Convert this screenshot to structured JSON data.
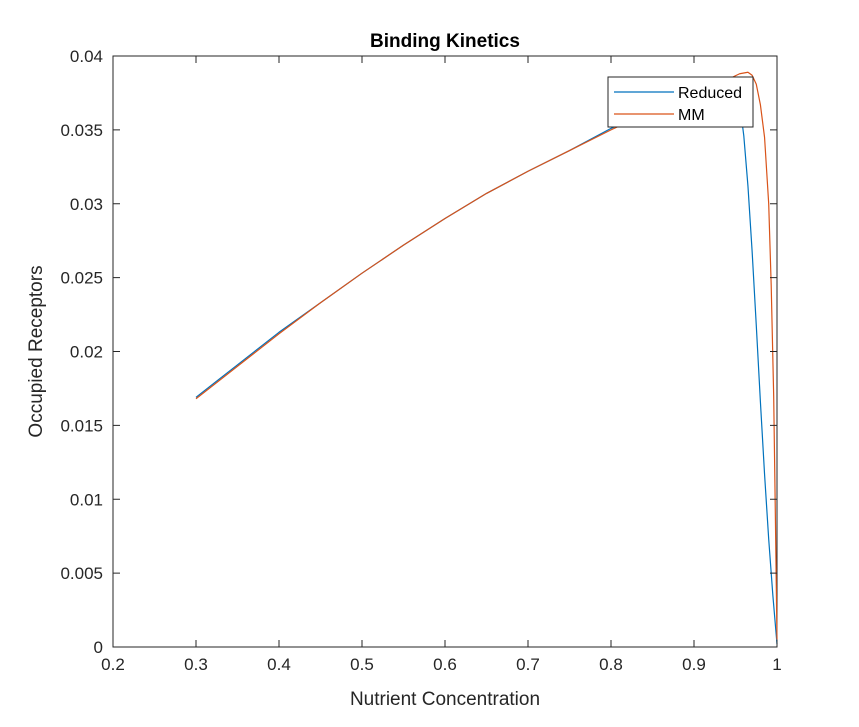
{
  "chart_data": {
    "type": "line",
    "title": "Binding Kinetics",
    "xlabel": "Nutrient Concentration",
    "ylabel": "Occupied Receptors",
    "xlim": [
      0.2,
      1.0
    ],
    "ylim": [
      0,
      0.04
    ],
    "xticks": [
      "0.2",
      "0.3",
      "0.4",
      "0.5",
      "0.6",
      "0.7",
      "0.8",
      "0.9",
      "1"
    ],
    "yticks": [
      "0",
      "0.005",
      "0.01",
      "0.015",
      "0.02",
      "0.025",
      "0.03",
      "0.035",
      "0.04"
    ],
    "grid": false,
    "legend_position": "top-right",
    "series": [
      {
        "name": "Reduced",
        "color": "#0072BD",
        "x": [
          0.3,
          0.35,
          0.4,
          0.45,
          0.5,
          0.55,
          0.6,
          0.65,
          0.7,
          0.75,
          0.8,
          0.85,
          0.9,
          0.925,
          0.94,
          0.95,
          0.955,
          0.96,
          0.965,
          0.97,
          0.975,
          0.98,
          0.985,
          0.99,
          0.995,
          1.0
        ],
        "y": [
          0.0169,
          0.0191,
          0.0213,
          0.0233,
          0.0253,
          0.0272,
          0.029,
          0.0307,
          0.0322,
          0.0336,
          0.0351,
          0.0364,
          0.0376,
          0.0382,
          0.0384,
          0.0378,
          0.0368,
          0.0346,
          0.0312,
          0.0268,
          0.0218,
          0.0166,
          0.0117,
          0.0073,
          0.0035,
          0.0002
        ]
      },
      {
        "name": "MM",
        "color": "#D95319",
        "x": [
          0.3,
          0.35,
          0.4,
          0.45,
          0.5,
          0.55,
          0.6,
          0.65,
          0.7,
          0.75,
          0.8,
          0.85,
          0.9,
          0.94,
          0.955,
          0.965,
          0.97,
          0.975,
          0.98,
          0.985,
          0.99,
          0.993,
          0.996,
          0.998,
          1.0
        ],
        "y": [
          0.0168,
          0.019,
          0.0212,
          0.0233,
          0.0253,
          0.0272,
          0.029,
          0.0307,
          0.0322,
          0.0336,
          0.035,
          0.0363,
          0.0375,
          0.0384,
          0.0388,
          0.0389,
          0.0387,
          0.0381,
          0.0367,
          0.0345,
          0.03,
          0.0245,
          0.017,
          0.009,
          0.0005
        ]
      }
    ]
  }
}
